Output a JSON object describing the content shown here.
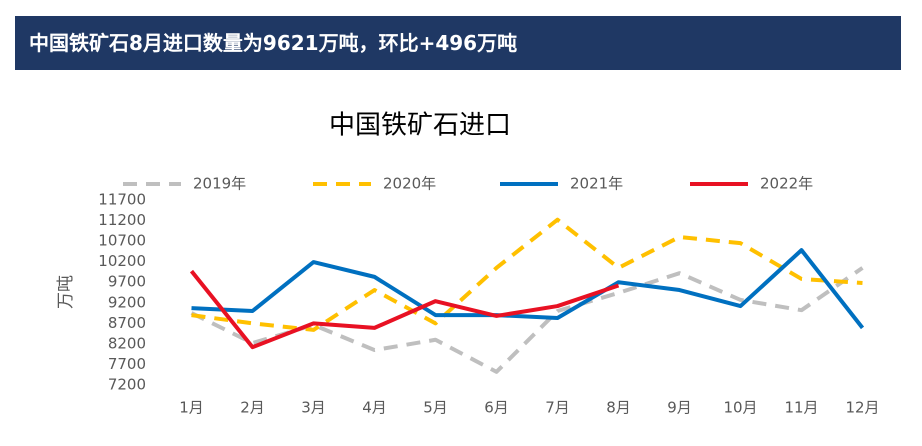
{
  "header": {
    "title": "中国铁矿石8月进口数量为9621万吨，环比+496万吨"
  },
  "chart_data": {
    "type": "line",
    "title": "中国铁矿石进口",
    "y_label": "万吨",
    "categories": [
      "1月",
      "2月",
      "3月",
      "4月",
      "5月",
      "6月",
      "7月",
      "8月",
      "9月",
      "10月",
      "11月",
      "12月"
    ],
    "series": [
      {
        "name": "2019年",
        "color": "#bfbfbf",
        "dashed": true,
        "values": [
          8950,
          8220,
          8660,
          8050,
          8300,
          7520,
          9000,
          9440,
          9920,
          9270,
          9020,
          10050
        ]
      },
      {
        "name": "2020年",
        "color": "#ffc000",
        "dashed": true,
        "values": [
          8900,
          8700,
          8540,
          9510,
          8700,
          10050,
          11220,
          10050,
          10800,
          10650,
          9780,
          9680
        ]
      },
      {
        "name": "2021年",
        "color": "#0070c0",
        "dashed": false,
        "values": [
          9070,
          9000,
          10190,
          9830,
          8900,
          8900,
          8830,
          9700,
          9510,
          9120,
          10480,
          8590
        ]
      },
      {
        "name": "2022年",
        "color": "#e81123",
        "dashed": false,
        "values": [
          9970,
          8120,
          8700,
          8590,
          9240,
          8880,
          9120,
          9621,
          null,
          null,
          null,
          null
        ]
      }
    ],
    "ylim": [
      7200,
      11700
    ],
    "yticks": [
      7200,
      7700,
      8200,
      8700,
      9200,
      9700,
      10200,
      10700,
      11200,
      11700
    ],
    "grid": false
  }
}
